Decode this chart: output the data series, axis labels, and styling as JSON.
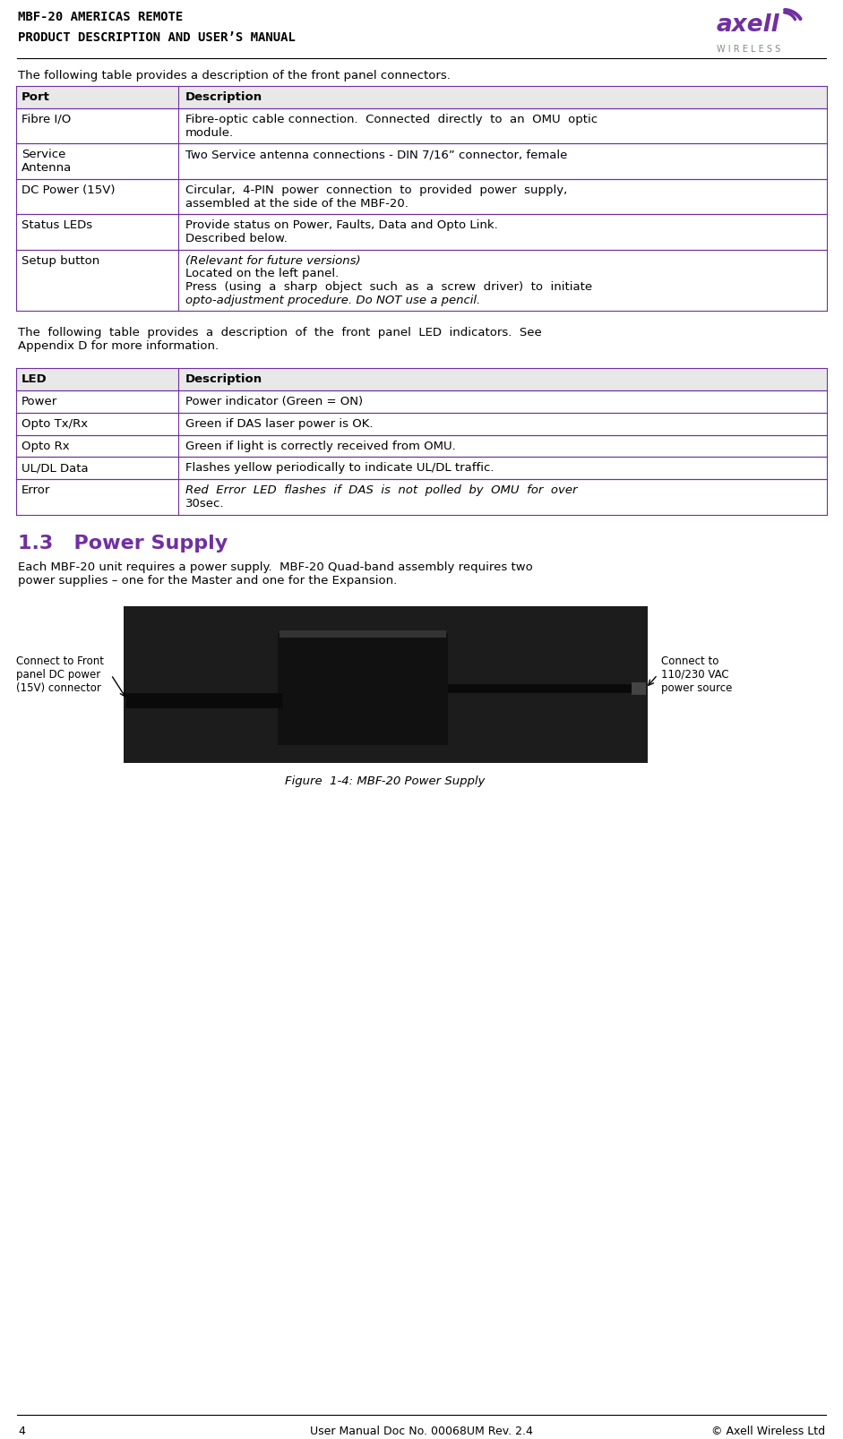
{
  "header_line1": "MBF-20 AMERICAS REMOTE",
  "header_line2": "PRODUCT DESCRIPTION AND USER’S MANUAL",
  "page_number": "4",
  "footer_text": "User Manual Doc No. 00068UM Rev. 2.4",
  "footer_right": "© Axell Wireless Ltd",
  "table1_intro": "The following table provides a description of the front panel connectors.",
  "table1_header": [
    "Port",
    "Description"
  ],
  "table1_rows": [
    [
      "Fibre I/O",
      "Fibre-optic cable connection.  Connected  directly  to  an  OMU  optic\nmodule."
    ],
    [
      "Service\nAntenna",
      "Two Service antenna connections - DIN 7/16” connector, female"
    ],
    [
      "DC Power (15V)",
      "Circular,  4-PIN  power  connection  to  provided  power  supply,\nassembled at the side of the MBF-20."
    ],
    [
      "Status LEDs",
      "Provide status on Power, Faults, Data and Opto Link.\nDescribed below."
    ],
    [
      "Setup button",
      "(Relevant for future versions)\nLocated on the left panel.\nPress  (using  a  sharp  object  such  as  a  screw  driver)  to  initiate\nopto-adjustment procedure. Do NOT use a pencil."
    ]
  ],
  "table2_intro": "The  following  table  provides  a  description  of  the  front  panel  LED  indicators.  See\nAppendix D for more information.",
  "table2_header": [
    "LED",
    "Description"
  ],
  "table2_rows": [
    [
      "Power",
      "Power indicator (Green = ON)"
    ],
    [
      "Opto Tx/Rx",
      "Green if DAS laser power is OK."
    ],
    [
      "Opto Rx",
      "Green if light is correctly received from OMU."
    ],
    [
      "UL/DL Data",
      "Flashes yellow periodically to indicate UL/DL traffic."
    ],
    [
      "Error",
      "Red  Error  LED  flashes  if  DAS  is  not  polled  by  OMU  for  over\n30sec."
    ]
  ],
  "section_title": "1.3   Power Supply",
  "section_body": "Each MBF-20 unit requires a power supply.  MBF-20 Quad-band assembly requires two\npower supplies – one for the Master and one for the Expansion.",
  "figure_caption": "Figure  1-4: MBF-20 Power Supply",
  "label_left": "Connect to Front\npanel DC power\n(15V) connector",
  "label_right": "Connect to\n110/230 VAC\npower source",
  "table_border_color": "#7030A0",
  "header_bg": "#E8E8E8",
  "header_font_color": "#000000",
  "body_bg": "#FFFFFF",
  "section_color": "#7030A0",
  "text_color": "#000000",
  "header_title_color": "#000000",
  "wireless_text": "W I R E L E S S"
}
